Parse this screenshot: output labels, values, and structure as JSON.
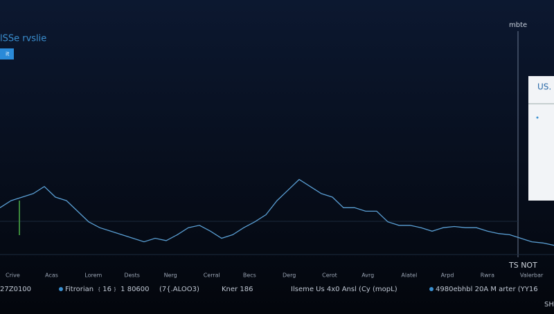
{
  "header": {
    "title": "lSSe rvslie",
    "button": "it",
    "top_right": "mbte"
  },
  "panel": {
    "title": "US. N"
  },
  "chart": {
    "type": "line",
    "color": "#5a9fd4",
    "ylim": [
      0,
      100
    ],
    "values": [
      41,
      47,
      50,
      53,
      59,
      50,
      47,
      38,
      29,
      24,
      21,
      18,
      15,
      12,
      15,
      13,
      18,
      24,
      26,
      21,
      15,
      18,
      24,
      29,
      35,
      47,
      56,
      65,
      59,
      53,
      50,
      41,
      41,
      38,
      38,
      29,
      26,
      26,
      24,
      21,
      24,
      25,
      24,
      24,
      21,
      19,
      18,
      15,
      12,
      11,
      9
    ],
    "categories": [
      "Crive",
      "Acas",
      "Lorem",
      "Dests",
      "Nerg",
      "Cerral",
      "Becs",
      "Derg",
      "Cerot",
      "Avrg",
      "Alatel",
      "Arpd",
      "Rwra",
      "Valerbar"
    ]
  },
  "marker": "TS NOT",
  "footer": {
    "items": [
      "27Z0100",
      "Fitrorian ﹛16﹜ 1 80600",
      "(7{.ALOO3)",
      "Kner 186",
      "Ilseme Us 4x0 Ansl (Cy (mopL)",
      "4980ebhbl 20A M arter (YY16"
    ],
    "corner": "SH"
  }
}
